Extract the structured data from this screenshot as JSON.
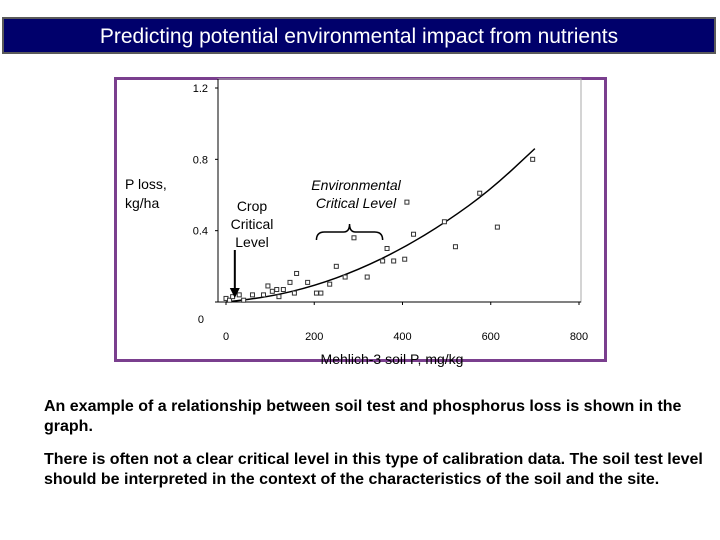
{
  "header": {
    "title": "Predicting potential environmental impact from nutrients"
  },
  "chart_data": {
    "type": "scatter",
    "title": "",
    "xlabel": "Mehlich-3 soil P, mg/kg",
    "ylabel": "P loss, kg/ha",
    "xlim": [
      0,
      800
    ],
    "ylim": [
      0,
      1.2
    ],
    "x_ticks": [
      "0",
      "200",
      "400",
      "600",
      "800"
    ],
    "y_ticks": [
      "0",
      "0.4",
      "0.8",
      "1.2"
    ],
    "points": [
      {
        "x": 0,
        "y": 0.02
      },
      {
        "x": 8,
        "y": 0.01
      },
      {
        "x": 15,
        "y": 0.03
      },
      {
        "x": 30,
        "y": 0.04
      },
      {
        "x": 40,
        "y": 0.01
      },
      {
        "x": 60,
        "y": 0.04
      },
      {
        "x": 85,
        "y": 0.04
      },
      {
        "x": 95,
        "y": 0.09
      },
      {
        "x": 105,
        "y": 0.06
      },
      {
        "x": 115,
        "y": 0.07
      },
      {
        "x": 120,
        "y": 0.03
      },
      {
        "x": 130,
        "y": 0.07
      },
      {
        "x": 145,
        "y": 0.11
      },
      {
        "x": 155,
        "y": 0.05
      },
      {
        "x": 160,
        "y": 0.16
      },
      {
        "x": 185,
        "y": 0.11
      },
      {
        "x": 205,
        "y": 0.05
      },
      {
        "x": 215,
        "y": 0.05
      },
      {
        "x": 235,
        "y": 0.1
      },
      {
        "x": 250,
        "y": 0.2
      },
      {
        "x": 270,
        "y": 0.14
      },
      {
        "x": 290,
        "y": 0.36
      },
      {
        "x": 320,
        "y": 0.14
      },
      {
        "x": 355,
        "y": 0.23
      },
      {
        "x": 365,
        "y": 0.3
      },
      {
        "x": 380,
        "y": 0.23
      },
      {
        "x": 405,
        "y": 0.24
      },
      {
        "x": 410,
        "y": 0.56
      },
      {
        "x": 425,
        "y": 0.38
      },
      {
        "x": 495,
        "y": 0.45
      },
      {
        "x": 520,
        "y": 0.31
      },
      {
        "x": 575,
        "y": 0.61
      },
      {
        "x": 615,
        "y": 0.42
      },
      {
        "x": 695,
        "y": 0.8
      }
    ],
    "trend_line": [
      {
        "x": 0,
        "y": 0.0
      },
      {
        "x": 100,
        "y": 0.03
      },
      {
        "x": 200,
        "y": 0.09
      },
      {
        "x": 300,
        "y": 0.18
      },
      {
        "x": 400,
        "y": 0.3
      },
      {
        "x": 500,
        "y": 0.45
      },
      {
        "x": 600,
        "y": 0.63
      },
      {
        "x": 700,
        "y": 0.86
      }
    ],
    "annotations": {
      "crop_critical_level": [
        "Crop",
        "Critical",
        "Level"
      ],
      "environmental_critical_level": [
        "Environmental",
        "Critical Level"
      ],
      "crop_arrow_x": 20,
      "environmental_bracket_x": [
        205,
        355
      ]
    },
    "ylabel_lines": [
      "P loss,",
      "kg/ha"
    ]
  },
  "captions": {
    "paragraph1": "An example of a relationship between soil test and phosphorus loss is shown in the graph.",
    "paragraph2": "There is often not a clear critical level in this type of calibration data. The soil test level should be interpreted in the context of the characteristics of the soil and the site."
  }
}
